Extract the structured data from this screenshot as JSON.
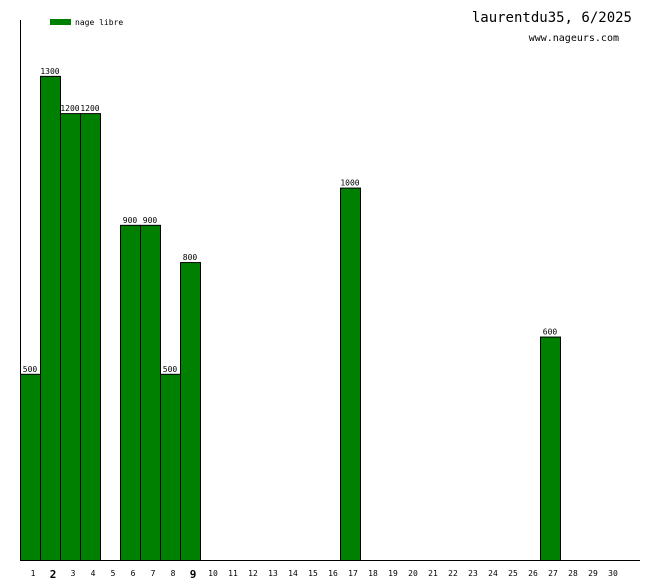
{
  "chart_data": {
    "type": "bar",
    "title": "laurentdu35, 6/2025",
    "subtitle": "www.nageurs.com",
    "xlabel": "",
    "ylabel": "",
    "ylim": [
      0,
      1450
    ],
    "grid": false,
    "legend_position": "top-left",
    "categories": [
      "1",
      "2",
      "3",
      "4",
      "5",
      "6",
      "7",
      "8",
      "9",
      "10",
      "11",
      "12",
      "13",
      "14",
      "15",
      "16",
      "17",
      "18",
      "19",
      "20",
      "21",
      "22",
      "23",
      "24",
      "25",
      "26",
      "27",
      "28",
      "29",
      "30"
    ],
    "emphasized_categories": [
      "2",
      "9"
    ],
    "series": [
      {
        "name": "nage libre",
        "color": "#008000",
        "values": [
          500,
          1300,
          1200,
          1200,
          0,
          900,
          900,
          500,
          800,
          0,
          0,
          0,
          0,
          0,
          0,
          0,
          1000,
          0,
          0,
          0,
          0,
          0,
          0,
          0,
          0,
          0,
          600,
          0,
          0,
          0
        ]
      }
    ]
  }
}
